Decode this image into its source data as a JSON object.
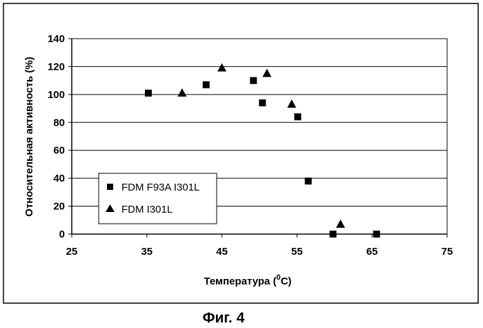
{
  "chart_data": {
    "type": "scatter",
    "xlabel": "Температура (",
    "xlabel_sup": "0",
    "xlabel_tail": "C)",
    "ylabel": "Относительная активность (%)",
    "xlim": [
      25,
      75
    ],
    "ylim": [
      0,
      140
    ],
    "x_ticks": [
      25,
      35,
      45,
      55,
      65,
      75
    ],
    "y_ticks": [
      0,
      20,
      40,
      60,
      80,
      100,
      120,
      140
    ],
    "grid": {
      "horizontal": true,
      "vertical": false
    },
    "legend_position": "bottom-left",
    "series": [
      {
        "name": "FDM F93A  I301L",
        "marker": "square",
        "color": "#000000",
        "points": [
          {
            "x": 35.2,
            "y": 101
          },
          {
            "x": 42.9,
            "y": 107
          },
          {
            "x": 49.2,
            "y": 110
          },
          {
            "x": 50.4,
            "y": 94
          },
          {
            "x": 55.1,
            "y": 84
          },
          {
            "x": 56.5,
            "y": 38
          },
          {
            "x": 59.8,
            "y": 0
          },
          {
            "x": 65.6,
            "y": 0
          }
        ]
      },
      {
        "name": "FDM I301L",
        "marker": "triangle",
        "color": "#000000",
        "points": [
          {
            "x": 39.7,
            "y": 101
          },
          {
            "x": 45.0,
            "y": 119
          },
          {
            "x": 51.0,
            "y": 115
          },
          {
            "x": 54.3,
            "y": 93
          },
          {
            "x": 60.8,
            "y": 7
          }
        ]
      }
    ]
  },
  "caption": "Фиг. 4"
}
